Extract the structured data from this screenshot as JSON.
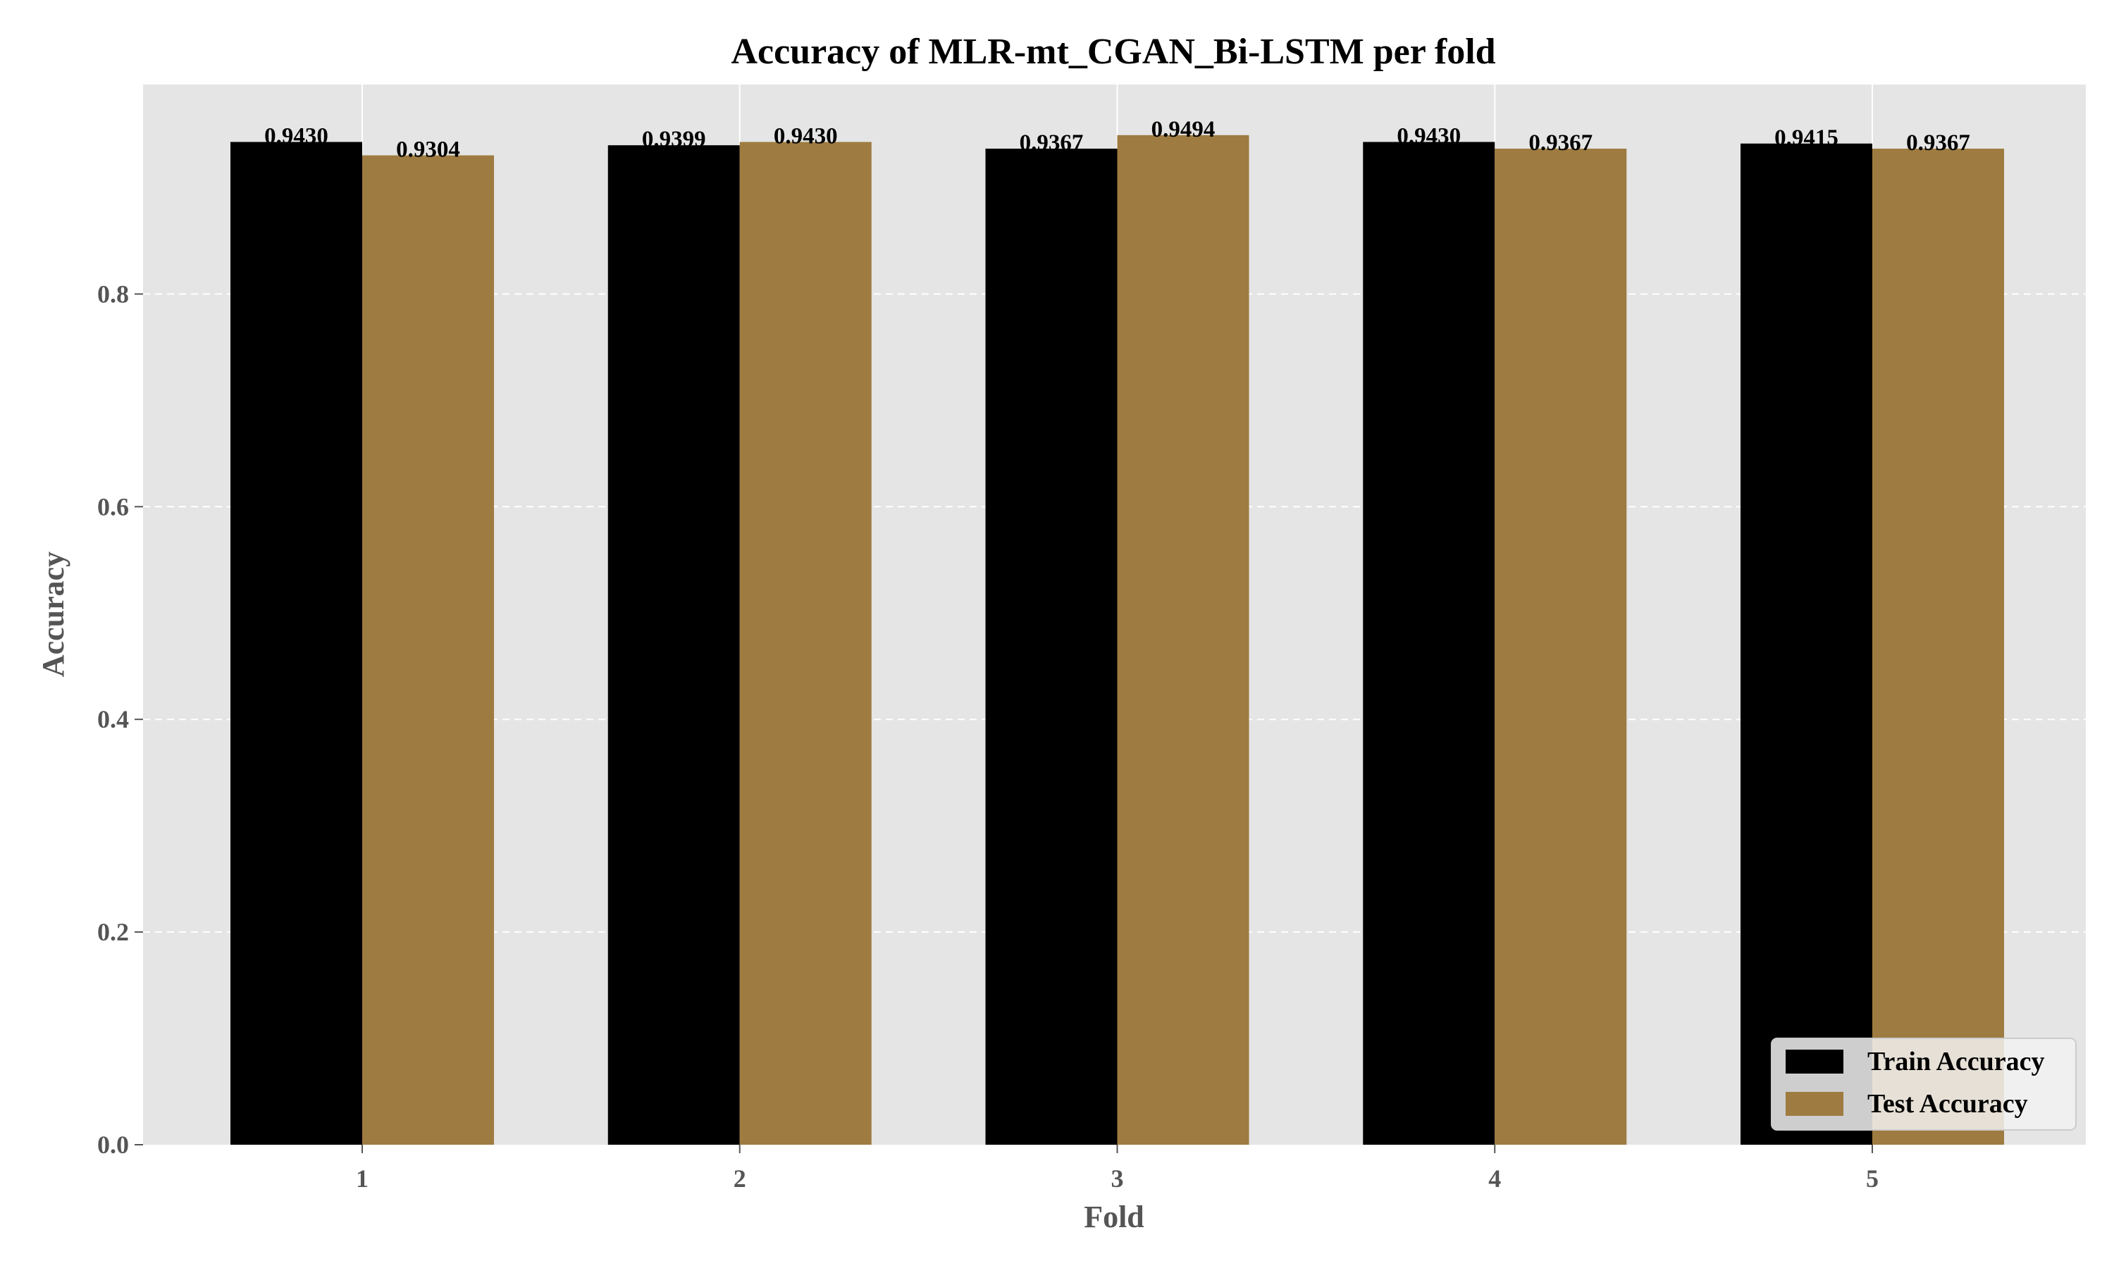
{
  "chart_data": {
    "type": "bar",
    "title": "Accuracy of MLR-mt_CGAN_Bi-LSTM per fold",
    "xlabel": "Fold",
    "ylabel": "Accuracy",
    "categories": [
      "1",
      "2",
      "3",
      "4",
      "5"
    ],
    "series": [
      {
        "name": "Train Accuracy",
        "color": "#000000",
        "values": [
          0.943,
          0.9399,
          0.9367,
          0.943,
          0.9415
        ]
      },
      {
        "name": "Test Accuracy",
        "color": "#9e7b40",
        "values": [
          0.9304,
          0.943,
          0.9494,
          0.9367,
          0.9367
        ]
      }
    ],
    "data_labels": {
      "train": [
        "0.9430",
        "0.9399",
        "0.9367",
        "0.9430",
        "0.9415"
      ],
      "test": [
        "0.9304",
        "0.9430",
        "0.9494",
        "0.9367",
        "0.9367"
      ]
    },
    "yticks": [
      "0.0",
      "0.2",
      "0.4",
      "0.6",
      "0.8"
    ],
    "ytick_values": [
      0,
      0.2,
      0.4,
      0.6,
      0.8
    ],
    "ylim": [
      0,
      0.997
    ],
    "grid": "y-dashed, x-solid",
    "legend_position": "bottom-right",
    "background_color": "#e5e5e5"
  }
}
